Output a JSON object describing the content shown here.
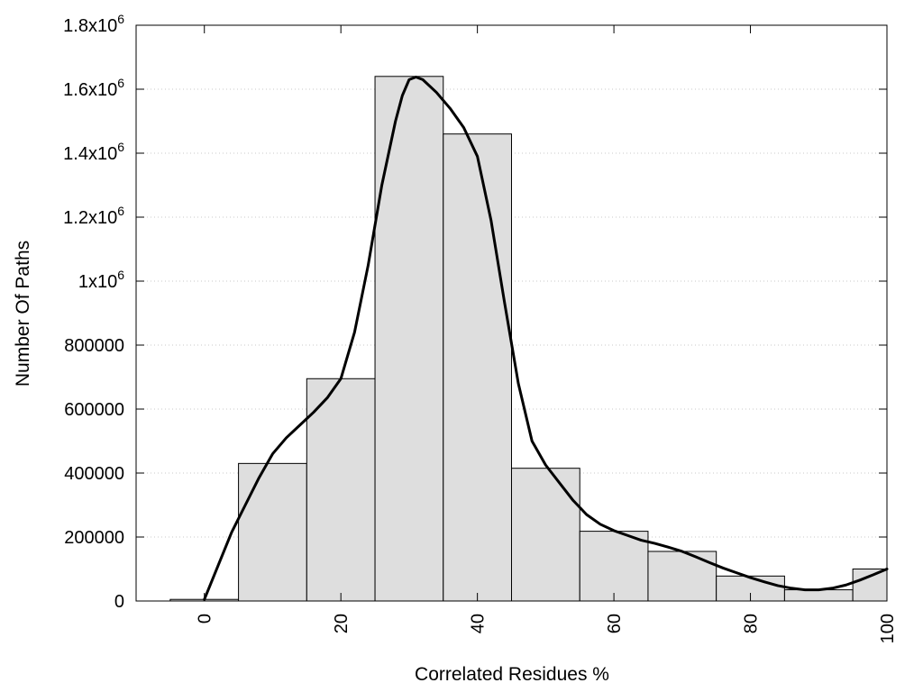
{
  "chart_data": {
    "type": "bar",
    "xlabel": "Correlated Residues %",
    "ylabel": "Number Of Paths",
    "xlim": [
      -10,
      100
    ],
    "ylim": [
      0,
      1800000
    ],
    "bin_width": 10,
    "bars": [
      {
        "x": 0,
        "value": 5000
      },
      {
        "x": 10,
        "value": 430000
      },
      {
        "x": 20,
        "value": 695000
      },
      {
        "x": 30,
        "value": 1640000
      },
      {
        "x": 40,
        "value": 1460000
      },
      {
        "x": 50,
        "value": 415000
      },
      {
        "x": 60,
        "value": 218000
      },
      {
        "x": 70,
        "value": 155000
      },
      {
        "x": 80,
        "value": 78000
      },
      {
        "x": 90,
        "value": 35000
      },
      {
        "x": 100,
        "value": 100000
      }
    ],
    "curve": [
      [
        0,
        5000
      ],
      [
        2,
        110000
      ],
      [
        4,
        215000
      ],
      [
        6,
        300000
      ],
      [
        8,
        385000
      ],
      [
        10,
        460000
      ],
      [
        12,
        510000
      ],
      [
        14,
        550000
      ],
      [
        16,
        590000
      ],
      [
        18,
        635000
      ],
      [
        20,
        695000
      ],
      [
        22,
        840000
      ],
      [
        24,
        1050000
      ],
      [
        26,
        1300000
      ],
      [
        28,
        1500000
      ],
      [
        29,
        1580000
      ],
      [
        30,
        1630000
      ],
      [
        31,
        1638000
      ],
      [
        32,
        1630000
      ],
      [
        34,
        1590000
      ],
      [
        36,
        1540000
      ],
      [
        38,
        1480000
      ],
      [
        40,
        1390000
      ],
      [
        42,
        1190000
      ],
      [
        44,
        930000
      ],
      [
        46,
        680000
      ],
      [
        48,
        500000
      ],
      [
        50,
        425000
      ],
      [
        52,
        370000
      ],
      [
        54,
        315000
      ],
      [
        56,
        270000
      ],
      [
        58,
        240000
      ],
      [
        60,
        220000
      ],
      [
        62,
        205000
      ],
      [
        64,
        190000
      ],
      [
        66,
        180000
      ],
      [
        68,
        168000
      ],
      [
        70,
        155000
      ],
      [
        72,
        138000
      ],
      [
        74,
        120000
      ],
      [
        76,
        103000
      ],
      [
        78,
        88000
      ],
      [
        80,
        73000
      ],
      [
        82,
        60000
      ],
      [
        84,
        48000
      ],
      [
        86,
        40000
      ],
      [
        88,
        35000
      ],
      [
        90,
        35000
      ],
      [
        92,
        40000
      ],
      [
        94,
        50000
      ],
      [
        96,
        65000
      ],
      [
        98,
        82000
      ],
      [
        100,
        100000
      ]
    ],
    "y_ticks": [
      {
        "value": 0,
        "base": "0",
        "exp": ""
      },
      {
        "value": 200000,
        "base": "200000",
        "exp": ""
      },
      {
        "value": 400000,
        "base": "400000",
        "exp": ""
      },
      {
        "value": 600000,
        "base": "600000",
        "exp": ""
      },
      {
        "value": 800000,
        "base": "800000",
        "exp": ""
      },
      {
        "value": 1000000,
        "base": "1x10",
        "exp": "6"
      },
      {
        "value": 1200000,
        "base": "1.2x10",
        "exp": "6"
      },
      {
        "value": 1400000,
        "base": "1.4x10",
        "exp": "6"
      },
      {
        "value": 1600000,
        "base": "1.6x10",
        "exp": "6"
      },
      {
        "value": 1800000,
        "base": "1.8x10",
        "exp": "6"
      }
    ],
    "x_ticks": [
      {
        "value": 0,
        "label": "0"
      },
      {
        "value": 20,
        "label": "20"
      },
      {
        "value": 40,
        "label": "40"
      },
      {
        "value": 60,
        "label": "60"
      },
      {
        "value": 80,
        "label": "80"
      },
      {
        "value": 100,
        "label": "100"
      }
    ],
    "grid": {
      "y": true,
      "x": false
    },
    "legend": "none",
    "colors": {
      "bar_fill": "#dedede",
      "bar_stroke": "#000000",
      "curve": "#000000",
      "grid": "#c8c8c8"
    }
  }
}
